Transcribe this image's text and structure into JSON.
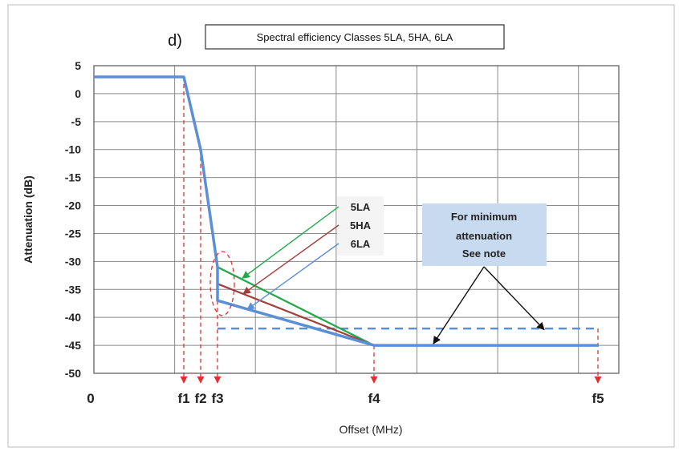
{
  "chart_data": {
    "type": "line",
    "panel_label": "d)",
    "title": "Spectral efficiency Classes  5LA, 5HA, 6LA",
    "xlabel": "Offset (MHz)",
    "ylabel": "Attenuation (dB)",
    "ylim": [
      -50,
      5
    ],
    "yticks": [
      "5",
      "0",
      "-5",
      "-10",
      "-15",
      "-20",
      "-25",
      "-30",
      "-35",
      "-40",
      "-45",
      "-50"
    ],
    "x_origin_label": "0",
    "grid": true,
    "f_labels": [
      "f1",
      "f2",
      "f3",
      "f4",
      "f5"
    ],
    "mask": {
      "points": [
        {
          "x": "0",
          "y": 3
        },
        {
          "x": "f1",
          "y": 3
        },
        {
          "x": "f2",
          "y": -10
        },
        {
          "x": "f3",
          "y": -31
        },
        {
          "x": "f3",
          "y": -37
        },
        {
          "x": "f4",
          "y": -45
        },
        {
          "x": "f5",
          "y": -45
        }
      ]
    },
    "series": [
      {
        "name": "5LA",
        "color": "#1faa48",
        "points": [
          {
            "x": "f3",
            "y": -31
          },
          {
            "x": "f4",
            "y": -45
          }
        ]
      },
      {
        "name": "5HA",
        "color": "#a0403c",
        "points": [
          {
            "x": "f3",
            "y": -34
          },
          {
            "x": "f4",
            "y": -45
          }
        ]
      },
      {
        "name": "6LA",
        "color": "#5b8fd6",
        "points": [
          {
            "x": "f3",
            "y": -37
          },
          {
            "x": "f4",
            "y": -45
          }
        ]
      }
    ],
    "dashed_line": {
      "y": -42,
      "from": "f3",
      "to": "f5"
    },
    "note": [
      "For minimum",
      "attenuation",
      "See note"
    ],
    "colors": {
      "mask": "#5b8fd6",
      "markers": "#e03030",
      "note_box": "#c8daf0"
    }
  }
}
